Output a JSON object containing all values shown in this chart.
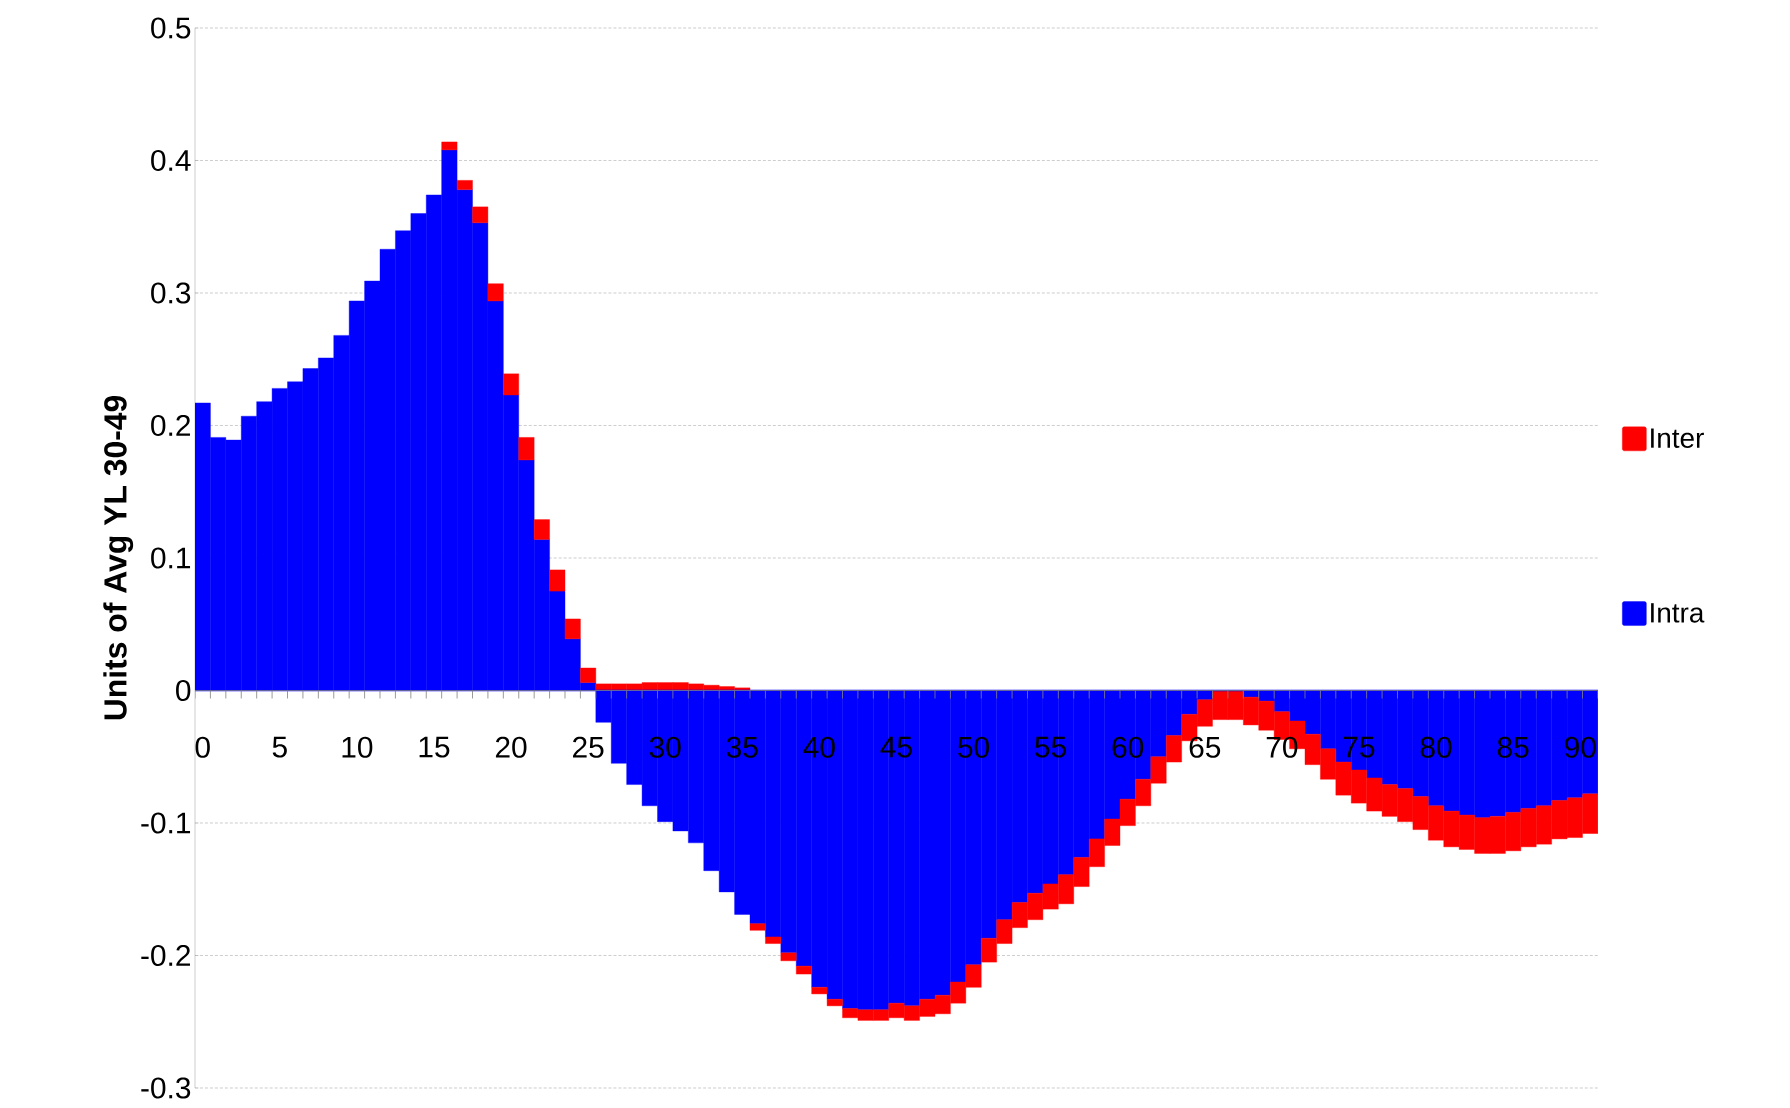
{
  "chart_data": {
    "type": "bar",
    "stacked": true,
    "ylabel": "Units of Avg YL 30-49",
    "categories": [
      "0",
      null,
      null,
      null,
      null,
      "5",
      null,
      null,
      null,
      null,
      "10",
      null,
      null,
      null,
      null,
      "15",
      null,
      null,
      null,
      null,
      "20",
      null,
      null,
      null,
      null,
      "25",
      null,
      null,
      null,
      null,
      "30",
      null,
      null,
      null,
      null,
      "35",
      null,
      null,
      null,
      null,
      "40",
      null,
      null,
      null,
      null,
      "45",
      null,
      null,
      null,
      null,
      "50",
      null,
      null,
      null,
      null,
      "55",
      null,
      null,
      null,
      null,
      "60",
      null,
      null,
      null,
      null,
      "65",
      null,
      null,
      null,
      null,
      "70",
      null,
      null,
      null,
      null,
      "75",
      null,
      null,
      null,
      null,
      "80",
      null,
      null,
      null,
      null,
      "85",
      null,
      null,
      null,
      null,
      "90"
    ],
    "series": [
      {
        "name": "Intra",
        "color": "#0000ff",
        "values": [
          0.217,
          0.191,
          0.189,
          0.207,
          0.218,
          0.228,
          0.233,
          0.243,
          0.251,
          0.268,
          0.294,
          0.309,
          0.333,
          0.347,
          0.36,
          0.374,
          0.408,
          0.378,
          0.353,
          0.294,
          0.223,
          0.174,
          0.114,
          0.075,
          0.039,
          0.006,
          -0.024,
          -0.055,
          -0.071,
          -0.087,
          -0.099,
          -0.106,
          -0.115,
          -0.136,
          -0.152,
          -0.169,
          -0.176,
          -0.186,
          -0.198,
          -0.208,
          -0.224,
          -0.233,
          -0.24,
          -0.241,
          -0.241,
          -0.236,
          -0.238,
          -0.233,
          -0.23,
          -0.22,
          -0.207,
          -0.187,
          -0.173,
          -0.16,
          -0.153,
          -0.146,
          -0.139,
          -0.126,
          -0.112,
          -0.097,
          -0.082,
          -0.067,
          -0.05,
          -0.034,
          -0.018,
          -0.007,
          null,
          null,
          -0.005,
          -0.008,
          -0.016,
          -0.023,
          -0.033,
          -0.044,
          -0.054,
          -0.06,
          -0.066,
          -0.071,
          -0.074,
          -0.08,
          -0.087,
          -0.091,
          -0.094,
          -0.096,
          -0.095,
          -0.092,
          -0.089,
          -0.087,
          -0.083,
          -0.081,
          -0.078
        ]
      },
      {
        "name": "Inter",
        "color": "#ff0000",
        "values": [
          0,
          0,
          0,
          0,
          0,
          0,
          0,
          0,
          0,
          0,
          0,
          0,
          0,
          0,
          0,
          0,
          0.006,
          0.007,
          0.012,
          0.013,
          0.016,
          0.017,
          0.015,
          0.016,
          0.015,
          0.011,
          0.005,
          0.005,
          0.005,
          0.006,
          0.006,
          0.006,
          0.005,
          0.004,
          0.003,
          0.002,
          -0.005,
          -0.005,
          -0.006,
          -0.006,
          -0.005,
          -0.005,
          -0.007,
          -0.008,
          -0.008,
          -0.011,
          -0.011,
          -0.013,
          -0.014,
          -0.016,
          -0.017,
          -0.018,
          -0.018,
          -0.019,
          -0.02,
          -0.019,
          -0.022,
          -0.022,
          -0.021,
          -0.02,
          -0.02,
          -0.02,
          -0.02,
          -0.02,
          -0.02,
          -0.02,
          -0.022,
          -0.022,
          -0.021,
          -0.022,
          -0.021,
          -0.021,
          -0.023,
          -0.023,
          -0.025,
          -0.025,
          -0.025,
          -0.024,
          -0.025,
          -0.025,
          -0.026,
          -0.027,
          -0.026,
          -0.027,
          -0.028,
          -0.029,
          -0.029,
          -0.029,
          -0.029,
          -0.03,
          -0.03
        ]
      }
    ],
    "ylim": [
      -0.3,
      0.5
    ],
    "yticks": [
      -0.3,
      -0.2,
      -0.1,
      0,
      0.1,
      0.2,
      0.3,
      0.4,
      0.5
    ],
    "grid": "y",
    "legend": "right"
  }
}
